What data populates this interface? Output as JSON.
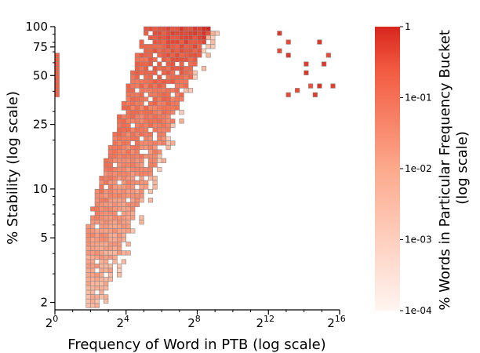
{
  "chart_data": {
    "type": "heatmap",
    "title": "",
    "xlabel": "Frequency of Word in PTB (log scale)",
    "ylabel": "% Stability (log scale)",
    "x_scale": "log2",
    "y_scale": "log",
    "xlim": [
      1,
      65536
    ],
    "ylim": [
      1.8,
      100
    ],
    "x_ticks": [
      {
        "value": 1,
        "base": "2",
        "exp": "0"
      },
      {
        "value": 16,
        "base": "2",
        "exp": "4"
      },
      {
        "value": 256,
        "base": "2",
        "exp": "8"
      },
      {
        "value": 4096,
        "base": "2",
        "exp": "12"
      },
      {
        "value": 65536,
        "base": "2",
        "exp": "16"
      }
    ],
    "y_ticks": [
      {
        "value": 2,
        "label": "2"
      },
      {
        "value": 5,
        "label": "5"
      },
      {
        "value": 10,
        "label": "10"
      },
      {
        "value": 25,
        "label": "25"
      },
      {
        "value": 50,
        "label": "50"
      },
      {
        "value": 75,
        "label": "75"
      },
      {
        "value": 100,
        "label": "100"
      }
    ],
    "grid": false,
    "colorbar": {
      "label": "% Words in Particular Frequency Bucket (log scale)",
      "label_lines": [
        "% Words in Particular Frequency Bucket",
        "(log scale)"
      ],
      "scale": "log",
      "range": [
        0.0001,
        1
      ],
      "ticks": [
        {
          "value": 1,
          "label": "1"
        },
        {
          "value": 0.1,
          "label": "1e-01"
        },
        {
          "value": 0.01,
          "label": "1e-02"
        },
        {
          "value": 0.001,
          "label": "1e-03"
        },
        {
          "value": 0.0001,
          "label": "1e-04"
        }
      ],
      "color_low": "#fff5f0",
      "color_mid": "#fb6a4a",
      "color_high": "#d7261e"
    },
    "cell_edge_color": "#888888",
    "series": [
      {
        "region": "frequency 1 (2^0)",
        "x_log2": 0,
        "stability_range": [
          38,
          70
        ],
        "share": 0.2
      },
      {
        "region": "low-frequency body",
        "x_log2_range": [
          2,
          6
        ],
        "stability_range": [
          2,
          60
        ],
        "share_range": [
          0.001,
          0.01
        ]
      },
      {
        "region": "diagonal band",
        "x_log2_range": [
          5,
          9
        ],
        "stability_range": [
          20,
          85
        ],
        "share_range": [
          0.01,
          0.1
        ]
      },
      {
        "region": "high-frequency top",
        "x_log2_range": [
          8,
          12
        ],
        "stability_range": [
          50,
          100
        ],
        "share_range": [
          0.01,
          0.3
        ]
      },
      {
        "region": "sparse high-frequency outliers",
        "x_log2_range": [
          12,
          15.5
        ],
        "stability_range": [
          35,
          95
        ],
        "share_range": [
          0.05,
          0.5
        ]
      }
    ]
  }
}
